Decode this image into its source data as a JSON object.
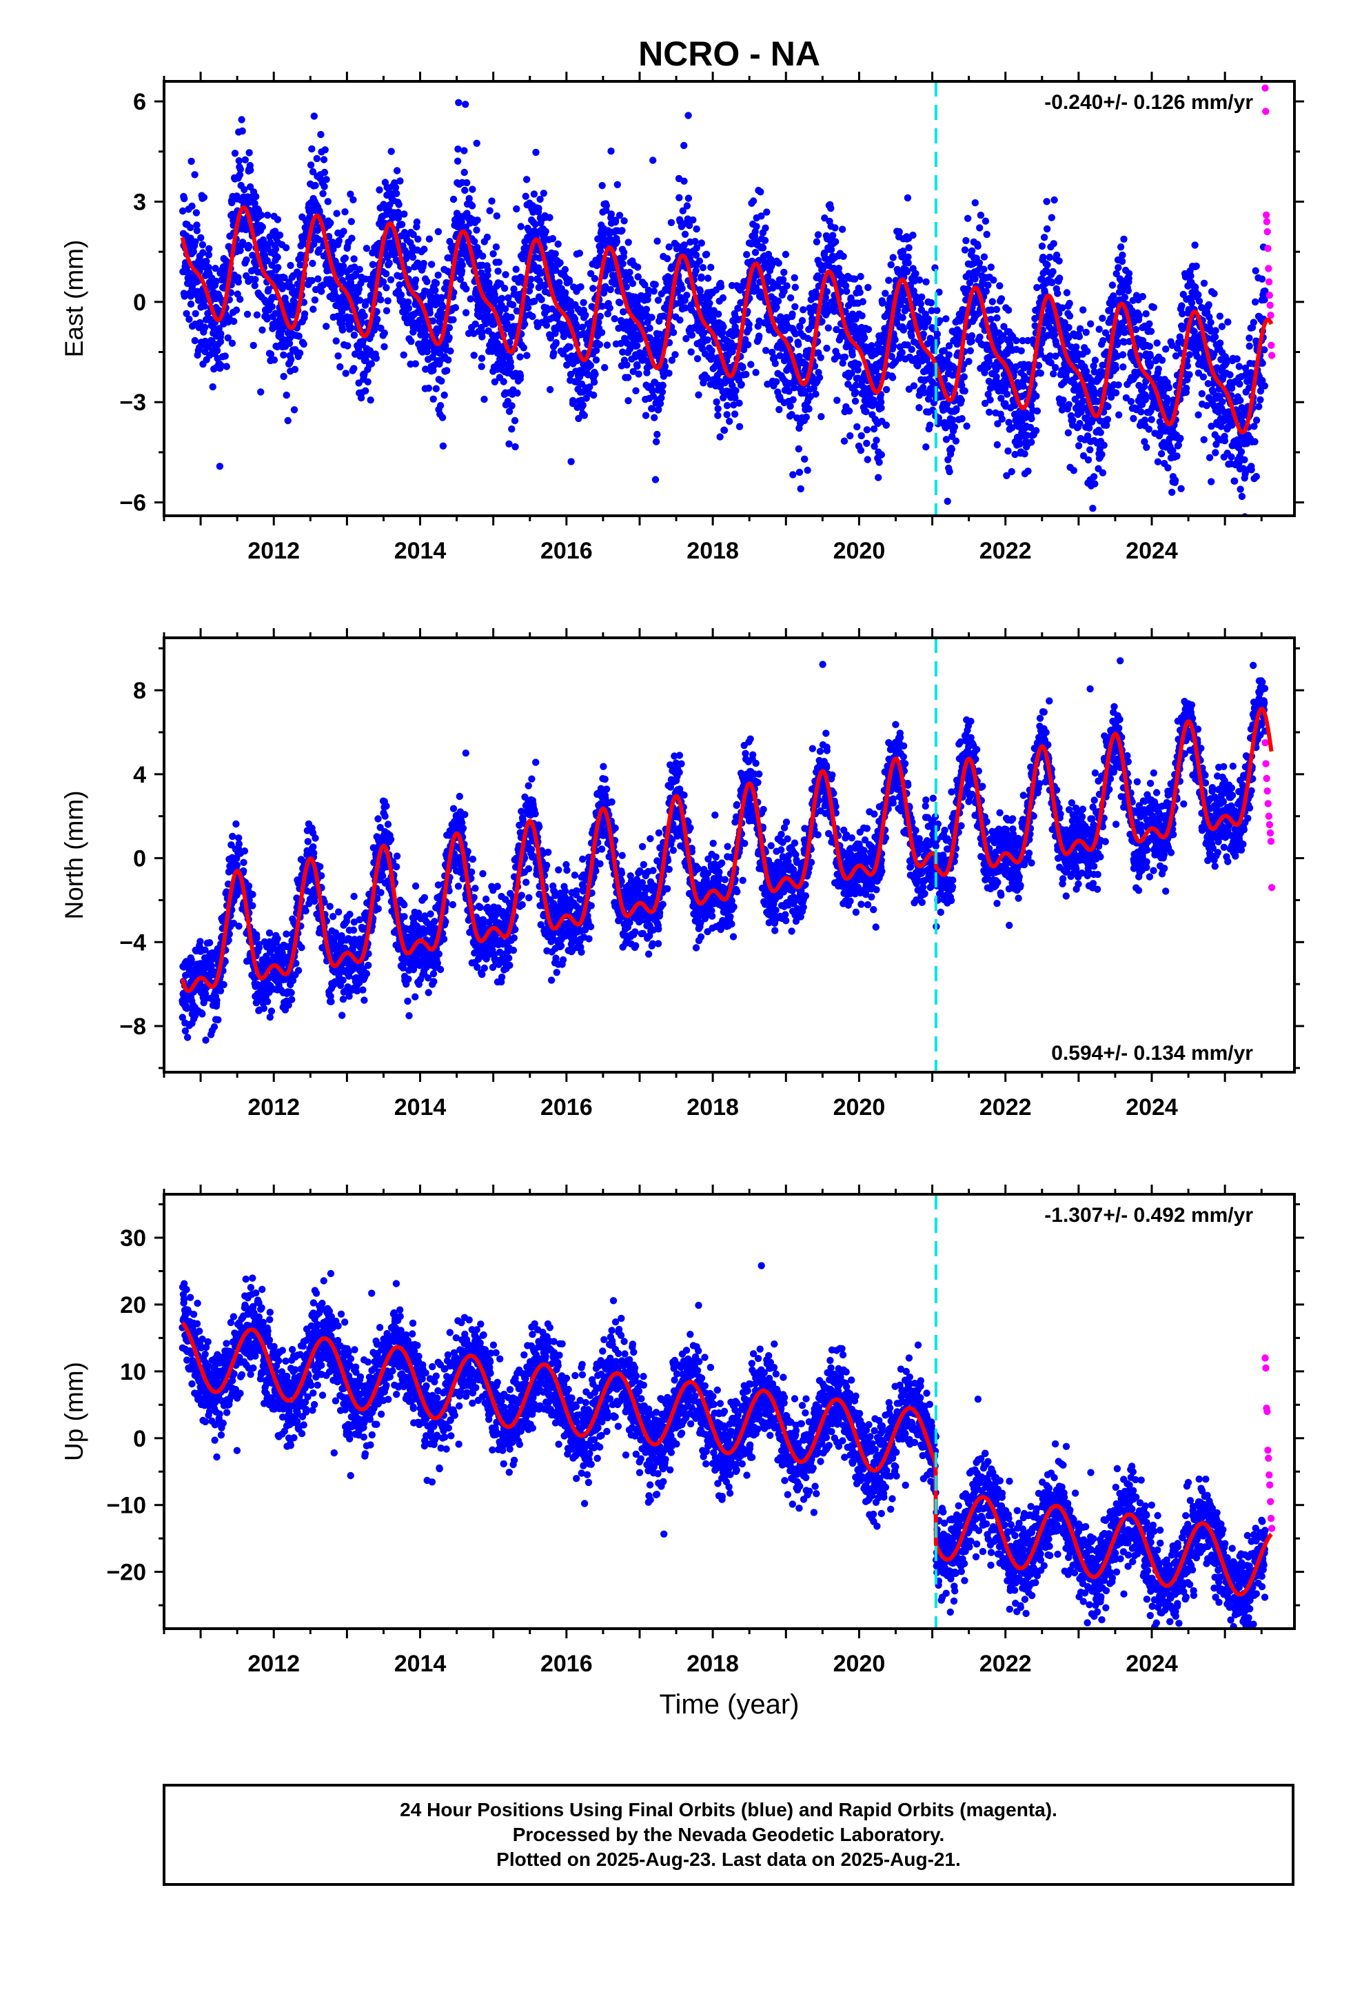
{
  "title": "NCRO - NA",
  "xlabel": "Time (year)",
  "footer": {
    "line1": "24 Hour Positions Using Final Orbits (blue) and Rapid Orbits (magenta).",
    "line2": "Processed by the Nevada Geodetic Laboratory.",
    "line3": "Plotted on 2025-Aug-23. Last data on 2025-Aug-21."
  },
  "colors": {
    "final": "#0000ff",
    "rapid": "#ff00ff",
    "model": "#ff0000",
    "event": "#00e5e5"
  },
  "chart_data": [
    {
      "type": "scatter",
      "panel": "East",
      "ylabel": "East (mm)",
      "rate_label": "-0.240+/- 0.126 mm/yr",
      "rate_position": "top-right",
      "xlim": [
        2010.5,
        2025.95
      ],
      "ylim": [
        -6.4,
        6.6
      ],
      "yticks": [
        6,
        3,
        0,
        -3,
        -6
      ],
      "ytick_labels": [
        "6",
        "3",
        "0",
        "−3",
        "−6"
      ],
      "xticks": [
        2012,
        2014,
        2016,
        2018,
        2020,
        2022,
        2024
      ],
      "event_year": 2021.05,
      "data_start": 2010.75,
      "last_data": 2025.64,
      "rapid_start": 2025.55,
      "model": {
        "offset_at_start": 1.2,
        "rate_mm_yr": -0.24,
        "annual_amp": 1.45,
        "annual_phase_year": 0.65,
        "semiannual_amp": 0.55,
        "semiannual_phase_year": 0.55,
        "step_at_event": 0
      },
      "scatter_sd": 1.05,
      "rapid_values": [
        6.4,
        5.7,
        2.6,
        2.4,
        2.1,
        1.6,
        1.0,
        0.6,
        0.2,
        -0.1,
        -0.4,
        -1.3,
        -1.6
      ]
    },
    {
      "type": "scatter",
      "panel": "North",
      "ylabel": "North (mm)",
      "rate_label": "0.594+/- 0.134 mm/yr",
      "rate_position": "bottom-right",
      "xlim": [
        2010.5,
        2025.95
      ],
      "ylim": [
        -10.2,
        10.5
      ],
      "yticks": [
        8,
        4,
        0,
        -4,
        -8
      ],
      "ytick_labels": [
        "8",
        "4",
        "0",
        "−4",
        "−8"
      ],
      "xticks": [
        2012,
        2014,
        2016,
        2018,
        2020,
        2022,
        2024
      ],
      "event_year": 2021.05,
      "data_start": 2010.75,
      "last_data": 2025.64,
      "rapid_start": 2025.55,
      "model": {
        "offset_at_start": -4.6,
        "rate_mm_yr": 0.594,
        "annual_amp": 2.4,
        "annual_phase_year": 0.5,
        "semiannual_amp": 1.15,
        "semiannual_phase_year": 0.5,
        "step_at_event": -0.6
      },
      "scatter_sd": 0.95,
      "rapid_values": [
        5.5,
        4.5,
        3.8,
        3.2,
        2.6,
        2.0,
        1.6,
        1.2,
        0.8,
        -1.4
      ]
    },
    {
      "type": "scatter",
      "panel": "Up",
      "ylabel": "Up (mm)",
      "rate_label": "-1.307+/- 0.492 mm/yr",
      "rate_position": "top-right",
      "xlim": [
        2010.5,
        2025.95
      ],
      "ylim": [
        -28.5,
        36.5
      ],
      "yticks": [
        30,
        20,
        10,
        0,
        -10,
        -20
      ],
      "ytick_labels": [
        "30",
        "20",
        "10",
        "0",
        "−10",
        "−20"
      ],
      "xticks": [
        2012,
        2014,
        2016,
        2018,
        2020,
        2022,
        2024
      ],
      "event_year": 2021.05,
      "data_start": 2010.75,
      "last_data": 2025.64,
      "rapid_start": 2025.55,
      "model": {
        "offset_at_start": 12.5,
        "rate_mm_yr": -1.307,
        "annual_amp": 5.0,
        "annual_phase_year": 0.7,
        "semiannual_amp": 0,
        "semiannual_phase_year": 0,
        "step_at_event": -12.0
      },
      "scatter_sd": 3.3,
      "rapid_values": [
        12.0,
        10.5,
        4.5,
        4.0,
        -1.8,
        -3.0,
        -5.5,
        -7.0,
        -9.5,
        -12.0,
        -13.5
      ]
    }
  ]
}
